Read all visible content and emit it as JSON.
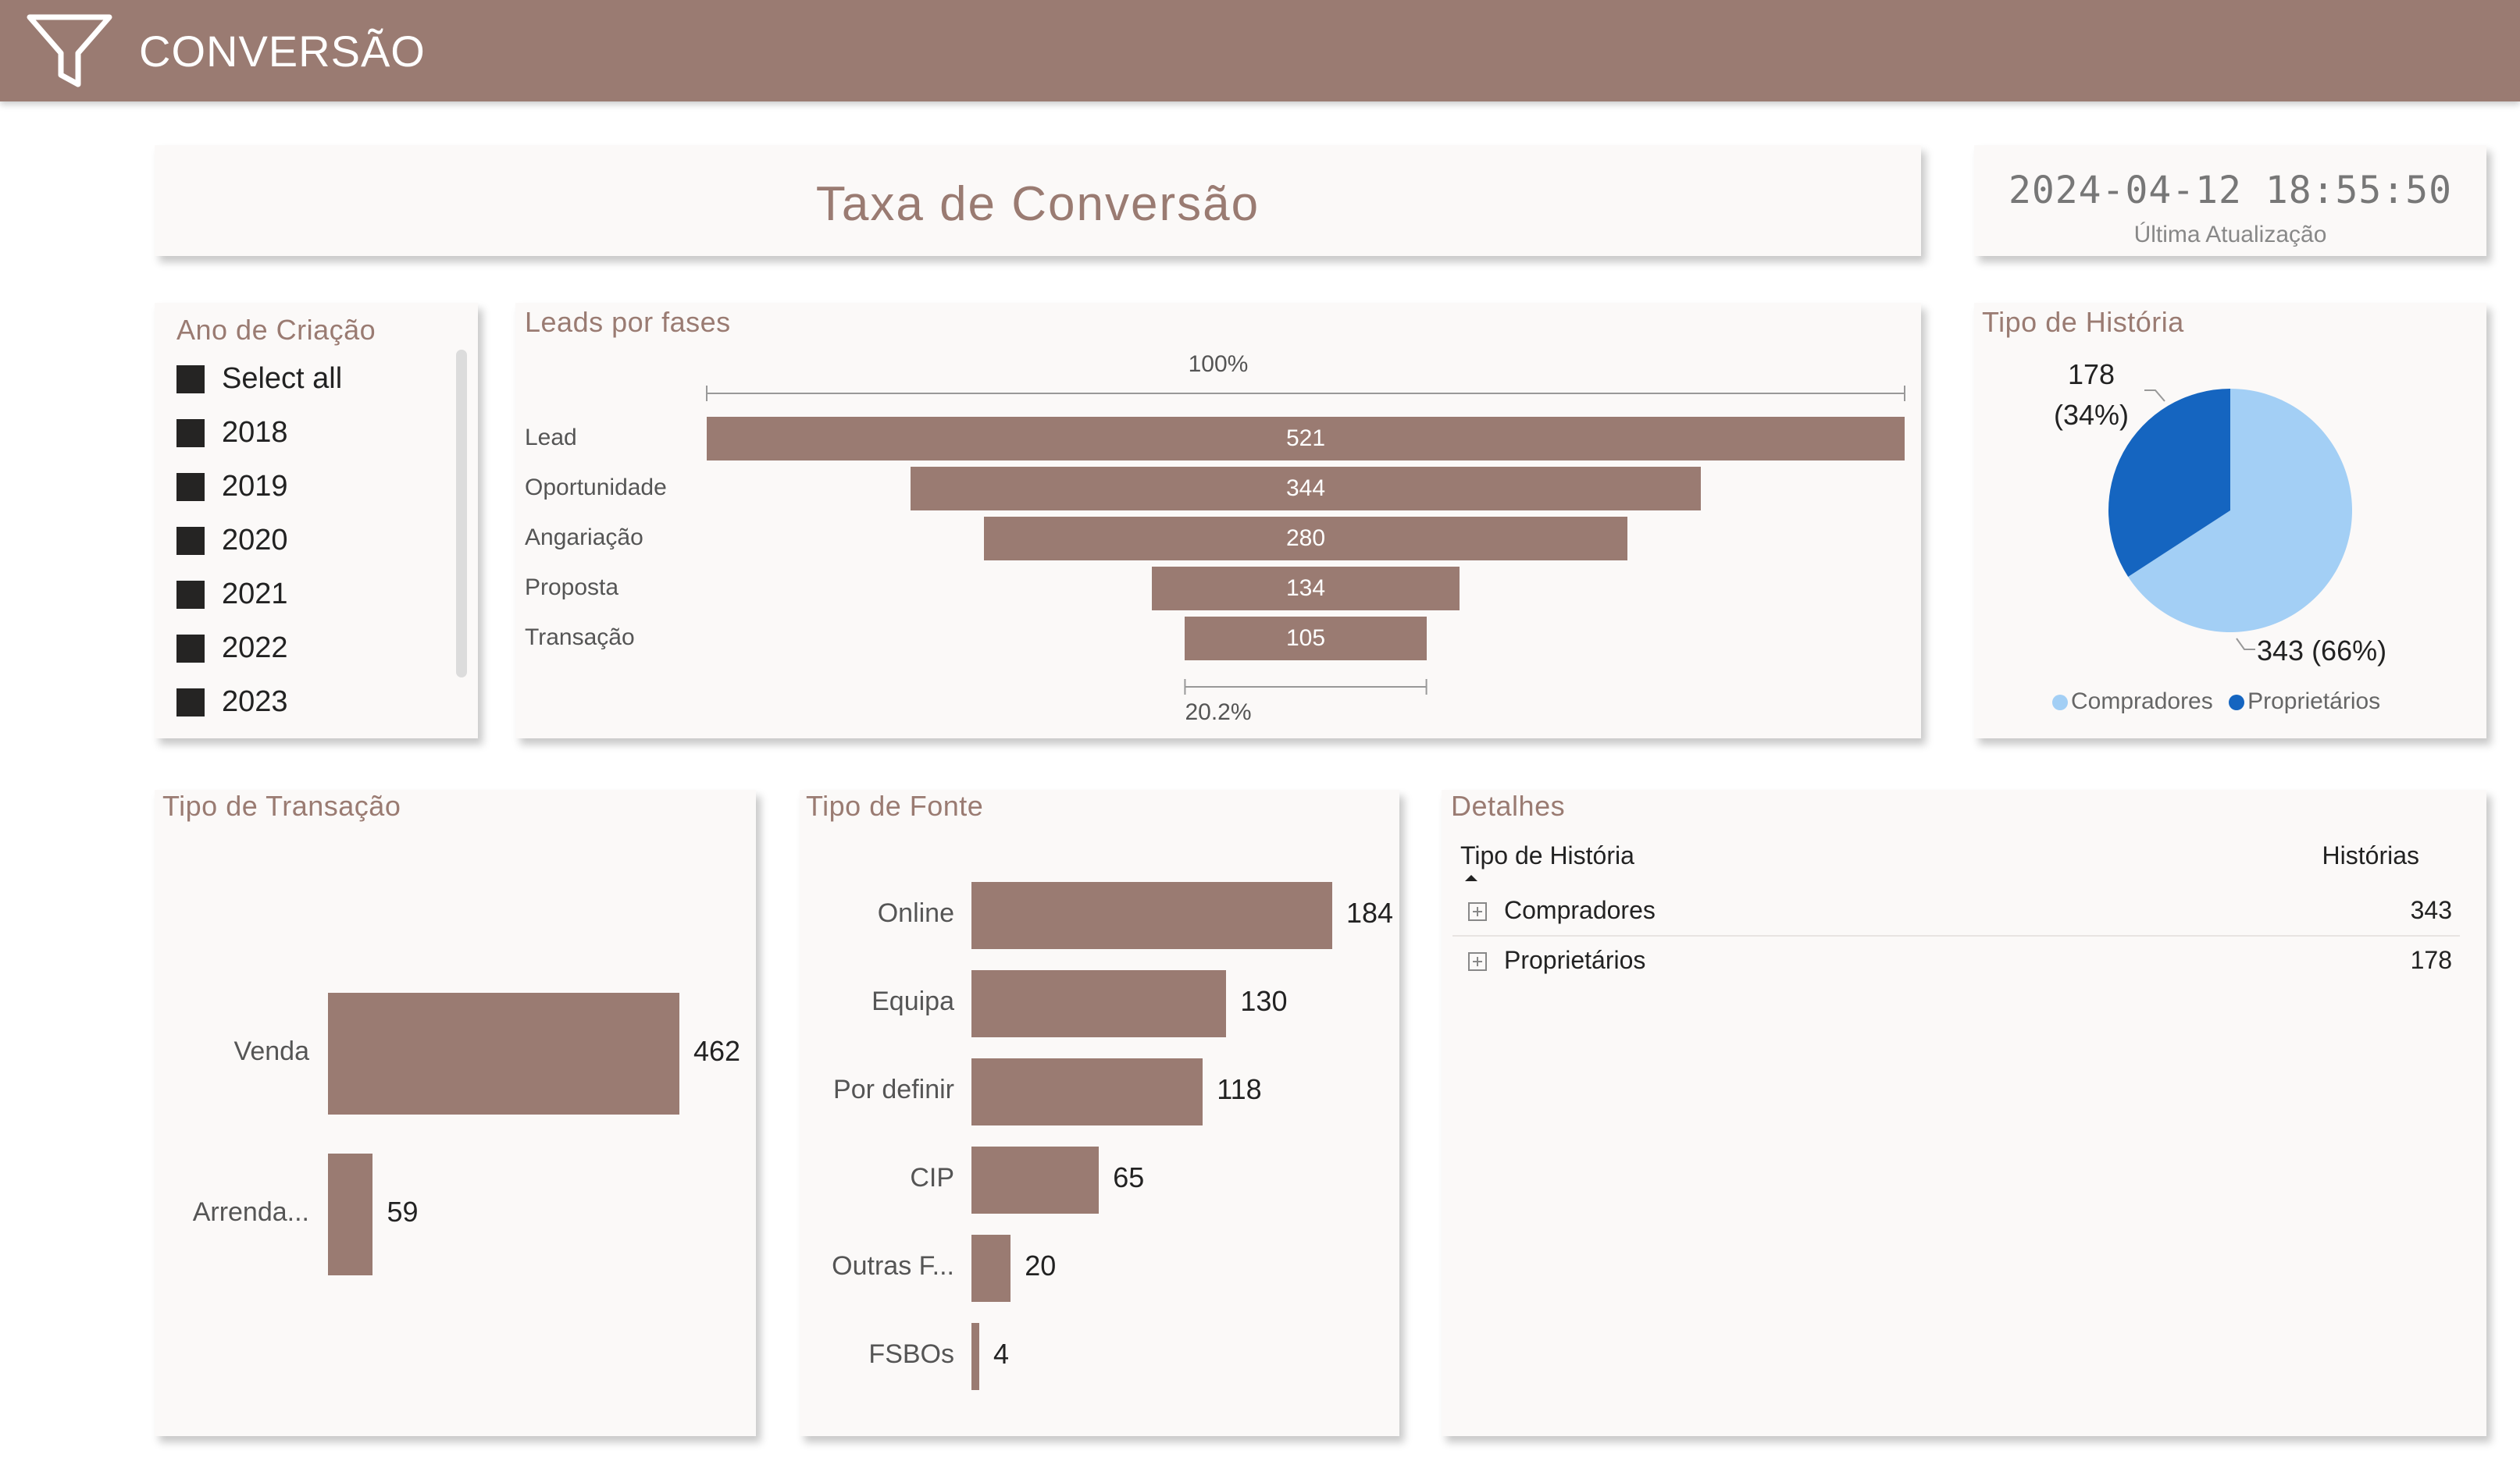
{
  "header": {
    "title": "CONVERSÃO",
    "icon": "funnel-icon"
  },
  "title_card": {
    "title": "Taxa de Conversão"
  },
  "last_update": {
    "datetime": "2024-04-12 18:55:50",
    "label": "Última Atualização"
  },
  "slicer": {
    "title": "Ano de Criação",
    "items": [
      "Select all",
      "2018",
      "2019",
      "2020",
      "2021",
      "2022",
      "2023"
    ]
  },
  "colors": {
    "brand": "#9a7b72",
    "compradores": "#a3cff5",
    "proprietarios": "#1565c0"
  },
  "funnel": {
    "title": "Leads por fases",
    "top_pct": "100%",
    "bottom_pct": "20.2%"
  },
  "pie": {
    "title": "Tipo de História",
    "label_small_value": "178",
    "label_small_pct": "(34%)",
    "label_big": "343 (66%)"
  },
  "transacao": {
    "title": "Tipo de Transação"
  },
  "fonte": {
    "title": "Tipo de Fonte"
  },
  "detalhes": {
    "title": "Detalhes",
    "col1": "Tipo de História",
    "col2": "Histórias",
    "rows": [
      {
        "name": "Compradores",
        "value": "343"
      },
      {
        "name": "Proprietários",
        "value": "178"
      }
    ]
  },
  "chart_data": [
    {
      "type": "funnel",
      "title": "Leads por fases",
      "categories": [
        "Lead",
        "Oportunidade",
        "Angariação",
        "Proposta",
        "Transação"
      ],
      "values": [
        521,
        344,
        280,
        134,
        105
      ]
    },
    {
      "type": "pie",
      "title": "Tipo de História",
      "categories": [
        "Compradores",
        "Proprietários"
      ],
      "values": [
        343,
        178
      ],
      "legend": "bottom"
    },
    {
      "type": "bar",
      "title": "Tipo de Transação",
      "categories": [
        "Venda",
        "Arrenda..."
      ],
      "values": [
        462,
        59
      ]
    },
    {
      "type": "bar",
      "title": "Tipo de Fonte",
      "categories": [
        "Online",
        "Equipa",
        "Por definir",
        "CIP",
        "Outras F...",
        "FSBOs"
      ],
      "values": [
        184,
        130,
        118,
        65,
        20,
        4
      ]
    }
  ]
}
